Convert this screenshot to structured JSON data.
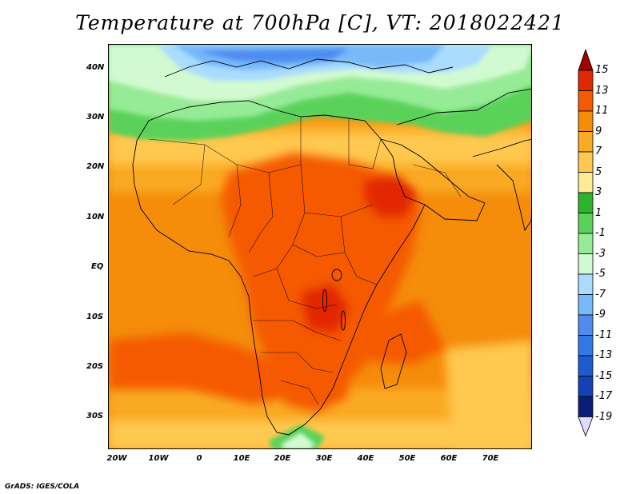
{
  "title": "Temperature at 700hPa [C], VT: 2018022421",
  "credit": "GrADS: IGES/COLA",
  "lat_labels": [
    "40N",
    "30N",
    "20N",
    "10N",
    "EQ",
    "10S",
    "20S",
    "30S"
  ],
  "lon_labels": [
    "20W",
    "10W",
    "0",
    "10E",
    "20E",
    "30E",
    "40E",
    "50E",
    "60E",
    "70E"
  ],
  "colorbar": {
    "labels": [
      "15",
      "13",
      "11",
      "9",
      "7",
      "5",
      "3",
      "1",
      "-1",
      "-3",
      "-5",
      "-7",
      "-9",
      "-11",
      "-13",
      "-15",
      "-17",
      "-19"
    ],
    "colors": [
      "#a00000",
      "#e12800",
      "#f55a00",
      "#f58c0a",
      "#faaa23",
      "#ffc850",
      "#ffeb96",
      "#2db42d",
      "#5ad25a",
      "#96eb96",
      "#d2fad2",
      "#aadcff",
      "#78b9fa",
      "#508cf0",
      "#3278e6",
      "#1e5ad2",
      "#1441b4",
      "#0a1e78",
      "#e1dcff"
    ]
  }
}
